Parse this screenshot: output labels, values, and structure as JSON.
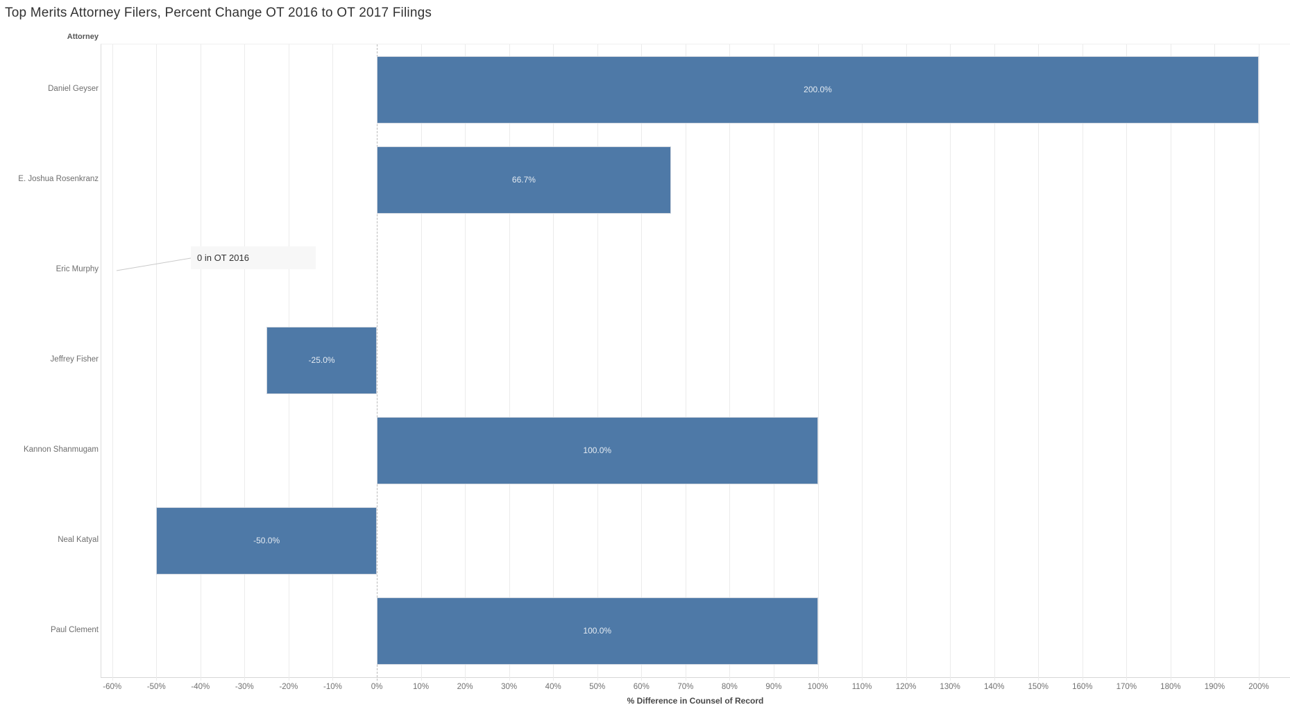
{
  "title": "Top Merits Attorney Filers, Percent Change OT 2016 to OT 2017 Filings",
  "chart_data": {
    "type": "bar",
    "orientation": "horizontal",
    "title": "Top Merits Attorney Filers, Percent Change OT 2016 to OT 2017 Filings",
    "row_header": "Attorney",
    "xlabel": "% Difference in Counsel of Record",
    "grid": true,
    "xlim": [
      -62.5,
      204.5
    ],
    "categories": [
      "Daniel Geyser",
      "E. Joshua Rosenkranz",
      "Eric Murphy",
      "Jeffrey Fisher",
      "Kannon Shanmugam",
      "Neal Katyal",
      "Paul Clement"
    ],
    "values": [
      200.0,
      66.7,
      null,
      -25.0,
      100.0,
      -50.0,
      100.0
    ],
    "bar_labels": [
      "200.0%",
      "66.7%",
      "",
      "-25.0%",
      "100.0%",
      "-50.0%",
      "100.0%"
    ],
    "x_tick_values": [
      -60,
      -50,
      -40,
      -30,
      -20,
      -10,
      0,
      10,
      20,
      30,
      40,
      50,
      60,
      70,
      80,
      90,
      100,
      110,
      120,
      130,
      140,
      150,
      160,
      170,
      180,
      190,
      200
    ],
    "x_tick_labels": [
      "-60%",
      "-50%",
      "-40%",
      "-30%",
      "-20%",
      "-10%",
      "0%",
      "10%",
      "20%",
      "30%",
      "40%",
      "50%",
      "60%",
      "70%",
      "80%",
      "90%",
      "100%",
      "110%",
      "120%",
      "130%",
      "140%",
      "150%",
      "160%",
      "170%",
      "180%",
      "190%",
      "200%"
    ],
    "annotation": {
      "text": "0 in OT 2016",
      "target_category": "Eric Murphy"
    },
    "colors": {
      "bar": "#4e79a7",
      "bar_border": "#cfd5de",
      "bar_label": "#ffffff",
      "annotation_bg": "#f7f7f7",
      "gridline": "#ebebeb"
    }
  }
}
